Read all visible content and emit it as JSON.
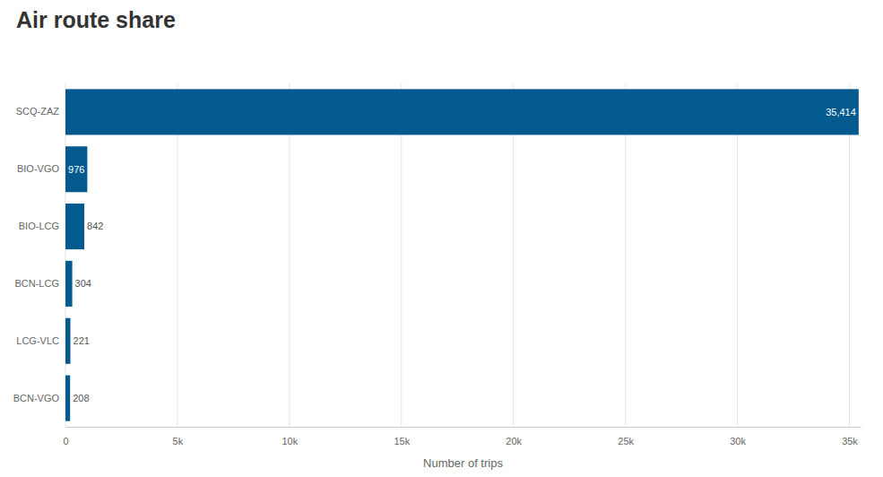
{
  "chart_data": {
    "type": "bar",
    "orientation": "horizontal",
    "title": "Air route share",
    "xlabel": "Number of trips",
    "categories": [
      "SCQ-ZAZ",
      "BIO-VGO",
      "BIO-LCG",
      "BCN-LCG",
      "LCG-VLC",
      "BCN-VGO"
    ],
    "values": [
      35414,
      976,
      842,
      304,
      221,
      208
    ],
    "value_labels": [
      "35,414",
      "976",
      "842",
      "304",
      "221",
      "208"
    ],
    "data_labels": true,
    "color": "#035a8f",
    "xlim": [
      0,
      35500
    ],
    "xticks": [
      0,
      {
        "value": 5000,
        "label": "5k"
      },
      {
        "value": 10000,
        "label": "10k"
      },
      {
        "value": 15000,
        "label": "15k"
      },
      {
        "value": 20000,
        "label": "20k"
      },
      {
        "value": 25000,
        "label": "25k"
      },
      {
        "value": 30000,
        "label": "30k"
      },
      {
        "value": 35000,
        "label": "35k"
      }
    ],
    "grid": true
  }
}
